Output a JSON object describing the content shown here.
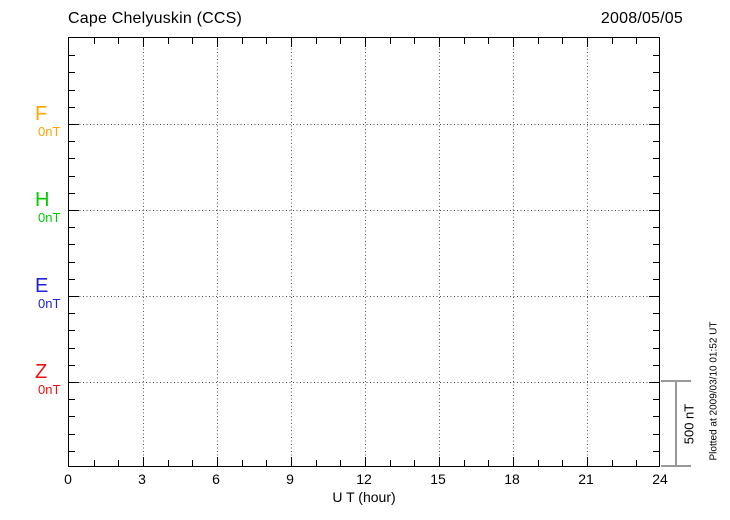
{
  "header": {
    "title": "Cape Chelyuskin (CCS)",
    "date": "2008/05/05"
  },
  "x_axis": {
    "label": "U T (hour)",
    "tick_labels": [
      "0",
      "3",
      "6",
      "9",
      "12",
      "15",
      "18",
      "21",
      "24"
    ]
  },
  "components": [
    {
      "name": "F",
      "zero_label": "0nT",
      "color": "#FFA500"
    },
    {
      "name": "H",
      "zero_label": "0nT",
      "color": "#00CC00"
    },
    {
      "name": "E",
      "zero_label": "0nT",
      "color": "#2222DD"
    },
    {
      "name": "Z",
      "zero_label": "0nT",
      "color": "#EE1111"
    }
  ],
  "scale_bar": {
    "label": "500 nT",
    "color": "#999999"
  },
  "side_note": "Plotted at 2009/03/10 01:52 UT",
  "chart_data": {
    "type": "line",
    "title": "Cape Chelyuskin (CCS)",
    "subtitle": "2008/05/05",
    "xlabel": "U T (hour)",
    "xlim": [
      0,
      24
    ],
    "x_major_tick_hours": 3,
    "x_minor_tick_hours": 1,
    "x_tick_labels": [
      "0",
      "3",
      "6",
      "9",
      "12",
      "15",
      "18",
      "21",
      "24"
    ],
    "y_division_nT": 500,
    "y_minor_tick_nT": 100,
    "grid": "dotted lines at 3-hour intervals and at each component 0nT baseline",
    "data_traces_visible": false,
    "series": [
      {
        "name": "F",
        "baseline_nT": 0,
        "baseline_label": "0nT",
        "color": "#FFA500",
        "x": [],
        "values": []
      },
      {
        "name": "H",
        "baseline_nT": 0,
        "baseline_label": "0nT",
        "color": "#00CC00",
        "x": [],
        "values": []
      },
      {
        "name": "E",
        "baseline_nT": 0,
        "baseline_label": "0nT",
        "color": "#2222DD",
        "x": [],
        "values": []
      },
      {
        "name": "Z",
        "baseline_nT": 0,
        "baseline_label": "0nT",
        "color": "#EE1111",
        "x": [],
        "values": []
      }
    ],
    "annotations": [
      "500 nT",
      "Plotted at 2009/03/10 01:52 UT"
    ]
  }
}
